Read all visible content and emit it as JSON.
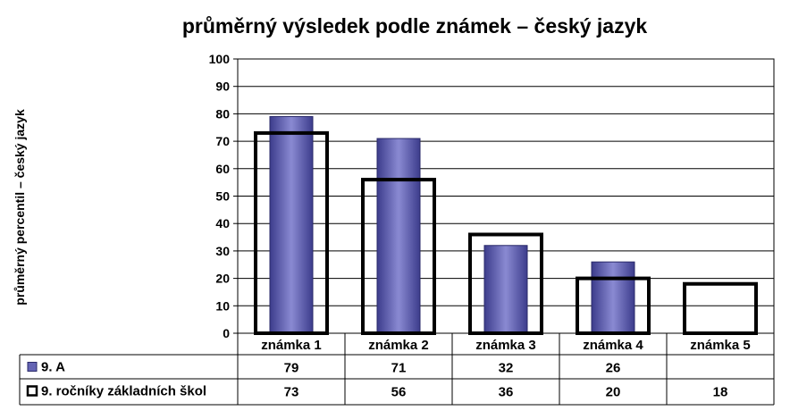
{
  "chart_data": {
    "type": "bar",
    "title": "průměrný výsledek podle známek – český jazyk",
    "ylabel": "průměrný percentil – český jazyk",
    "xlabel": "",
    "ylim": [
      0,
      100
    ],
    "yticks": [
      0,
      10,
      20,
      30,
      40,
      50,
      60,
      70,
      80,
      90,
      100
    ],
    "grid": true,
    "legend": "data-table-left",
    "categories": [
      "známka 1",
      "známka 2",
      "známka 3",
      "známka 4",
      "známka 5"
    ],
    "series": [
      {
        "name": "9. A",
        "style": "filled-bar",
        "color": "#6464b4",
        "values": [
          79,
          71,
          32,
          26,
          null
        ],
        "labels": [
          "79",
          "71",
          "32",
          "26",
          ""
        ]
      },
      {
        "name": "9. ročníky základních škol",
        "style": "outline-bar",
        "color": "#000000",
        "values": [
          73,
          56,
          36,
          20,
          18
        ],
        "labels": [
          "73",
          "56",
          "36",
          "20",
          "18"
        ]
      }
    ]
  }
}
